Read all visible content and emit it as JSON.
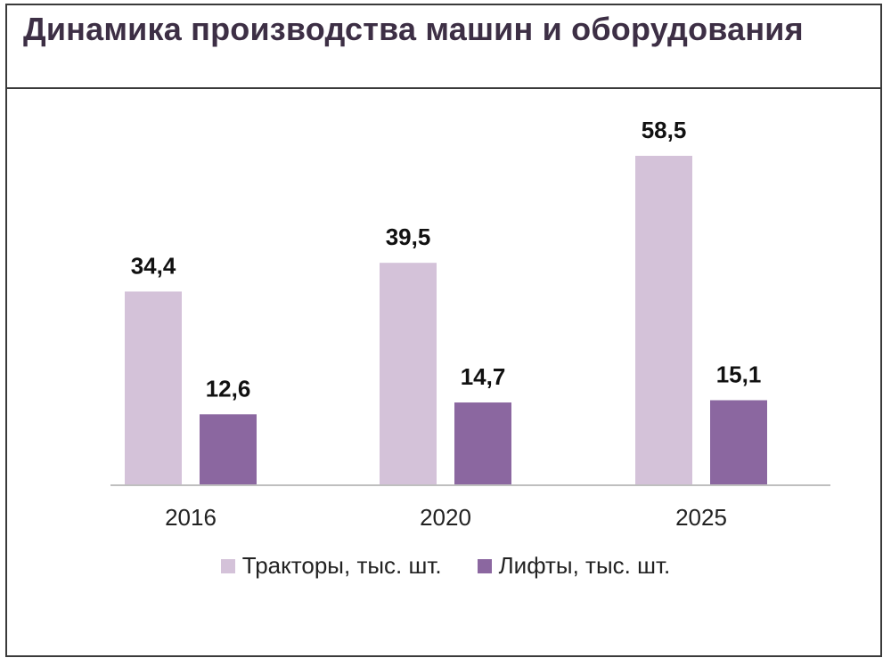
{
  "title": "Динамика производства машин и оборудования",
  "colors": {
    "tractors": "#d4c2d9",
    "lifts": "#8b67a0",
    "axis": "#bfbfbf",
    "title": "#3d2f45"
  },
  "chart_data": {
    "type": "bar",
    "categories": [
      "2016",
      "2020",
      "2025"
    ],
    "series": [
      {
        "name": "Тракторы, тыс. шт.",
        "values": [
          34.4,
          39.5,
          58.5
        ],
        "labels": [
          "34,4",
          "39,5",
          "58,5"
        ]
      },
      {
        "name": "Лифты, тыс. шт.",
        "values": [
          12.6,
          14.7,
          15.1
        ],
        "labels": [
          "12,6",
          "14,7",
          "15,1"
        ]
      }
    ],
    "title": "Динамика производства машин и оборудования",
    "xlabel": "",
    "ylabel": "",
    "ylim": [
      0,
      60
    ],
    "grid": false,
    "legend": "bottom"
  }
}
